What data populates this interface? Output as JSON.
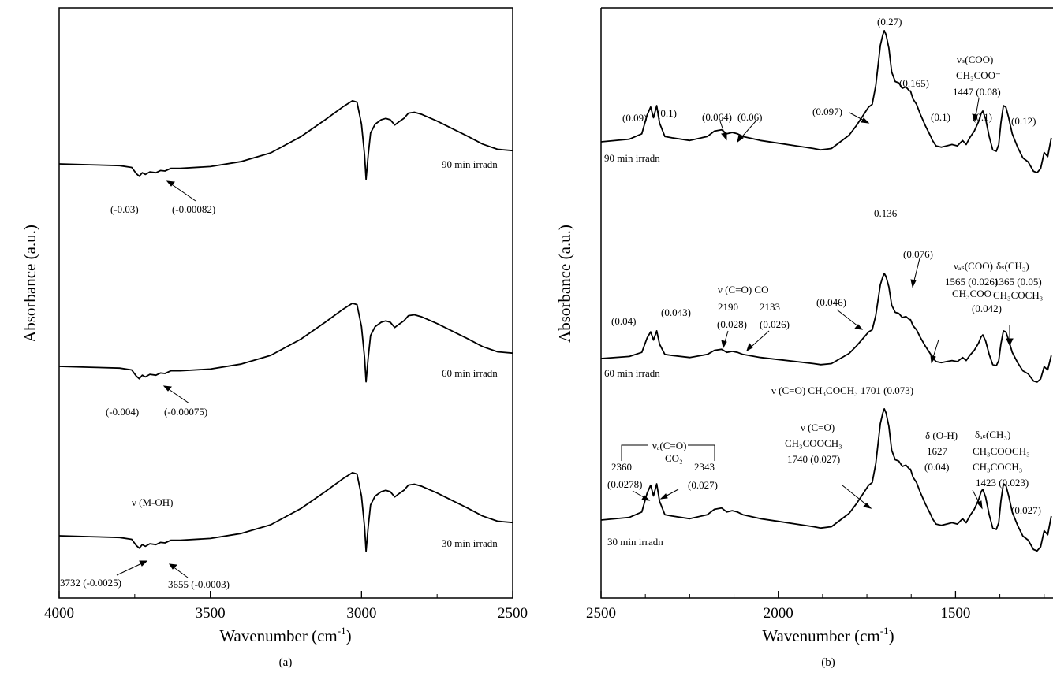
{
  "chart_data": [
    {
      "type": "line",
      "panel_label": "(a)",
      "xlabel": "Wavenumber (cm",
      "xlabel_sup": "-1",
      "xlabel_close": ")",
      "ylabel": "Absorbance (a.u.)",
      "xlim": [
        4000,
        2500
      ],
      "x_ticks": [
        "4000",
        "3500",
        "3000",
        "2500"
      ],
      "y_ticks_shown": false,
      "series": [
        {
          "name": "90 min irradn",
          "x": [
            4000,
            3900,
            3800,
            3760,
            3745,
            3735,
            3725,
            3715,
            3700,
            3680,
            3665,
            3650,
            3630,
            3600,
            3500,
            3400,
            3300,
            3200,
            3120,
            3060,
            3030,
            3015,
            3000,
            2990,
            2985,
            2978,
            2970,
            2955,
            2935,
            2920,
            2905,
            2890,
            2875,
            2860,
            2845,
            2825,
            2800,
            2750,
            2700,
            2650,
            2600,
            2550,
            2500
          ],
          "y": [
            0,
            -0.002,
            -0.004,
            -0.008,
            -0.022,
            -0.028,
            -0.02,
            -0.024,
            -0.018,
            -0.02,
            -0.015,
            -0.016,
            -0.01,
            -0.01,
            -0.006,
            0.005,
            0.025,
            0.062,
            0.1,
            0.13,
            0.143,
            0.14,
            0.09,
            0.02,
            -0.035,
            0.02,
            0.07,
            0.09,
            0.1,
            0.103,
            0.1,
            0.088,
            0.096,
            0.103,
            0.115,
            0.117,
            0.112,
            0.097,
            0.08,
            0.063,
            0.045,
            0.033,
            0.03
          ]
        },
        {
          "name": "60 min irradn",
          "x": [
            4000,
            3900,
            3800,
            3760,
            3745,
            3735,
            3725,
            3715,
            3700,
            3680,
            3665,
            3650,
            3630,
            3600,
            3500,
            3400,
            3300,
            3200,
            3120,
            3060,
            3030,
            3015,
            3000,
            2990,
            2985,
            2978,
            2970,
            2955,
            2935,
            2920,
            2905,
            2890,
            2875,
            2860,
            2845,
            2825,
            2800,
            2750,
            2700,
            2650,
            2600,
            2550,
            2500
          ],
          "y": [
            0,
            -0.002,
            -0.004,
            -0.008,
            -0.022,
            -0.028,
            -0.02,
            -0.024,
            -0.018,
            -0.02,
            -0.015,
            -0.016,
            -0.01,
            -0.01,
            -0.006,
            0.005,
            0.025,
            0.062,
            0.1,
            0.13,
            0.143,
            0.14,
            0.09,
            0.02,
            -0.035,
            0.02,
            0.07,
            0.09,
            0.1,
            0.103,
            0.1,
            0.088,
            0.096,
            0.103,
            0.115,
            0.117,
            0.112,
            0.097,
            0.08,
            0.063,
            0.045,
            0.033,
            0.03
          ]
        },
        {
          "name": "30 min irradn",
          "x": [
            4000,
            3900,
            3800,
            3760,
            3745,
            3735,
            3725,
            3715,
            3700,
            3680,
            3665,
            3650,
            3630,
            3600,
            3500,
            3400,
            3300,
            3200,
            3120,
            3060,
            3030,
            3015,
            3000,
            2990,
            2985,
            2978,
            2970,
            2955,
            2935,
            2920,
            2905,
            2890,
            2875,
            2860,
            2845,
            2825,
            2800,
            2750,
            2700,
            2650,
            2600,
            2550,
            2500
          ],
          "y": [
            0,
            -0.002,
            -0.004,
            -0.008,
            -0.022,
            -0.028,
            -0.02,
            -0.024,
            -0.018,
            -0.02,
            -0.015,
            -0.016,
            -0.01,
            -0.01,
            -0.006,
            0.005,
            0.025,
            0.062,
            0.1,
            0.13,
            0.143,
            0.14,
            0.09,
            0.02,
            -0.035,
            0.02,
            0.07,
            0.09,
            0.1,
            0.103,
            0.1,
            0.088,
            0.096,
            0.103,
            0.115,
            0.117,
            0.112,
            0.097,
            0.08,
            0.063,
            0.045,
            0.033,
            0.03
          ]
        }
      ],
      "annotations": [
        {
          "text": "(-0.03)"
        },
        {
          "text": "(-0.00082)"
        },
        {
          "text": "(-0.004)"
        },
        {
          "text": "(-0.00075)"
        },
        {
          "text": "ν (M-OH)"
        },
        {
          "text": "3732 (-0.0025)"
        },
        {
          "text": "3655 (-0.0003)"
        }
      ]
    },
    {
      "type": "line",
      "panel_label": "(b)",
      "xlabel": "Wavenumber (cm",
      "xlabel_sup": "-1",
      "xlabel_close": ")",
      "ylabel": "Absorbance (a.u.)",
      "xlim": [
        2500,
        1230
      ],
      "x_ticks": [
        "2500",
        "2000",
        "1500"
      ],
      "y_ticks_shown": false,
      "series": [
        {
          "name": "90 min irradn",
          "x": [
            2500,
            2420,
            2385,
            2370,
            2360,
            2352,
            2343,
            2335,
            2320,
            2300,
            2250,
            2200,
            2180,
            2160,
            2145,
            2130,
            2115,
            2100,
            2050,
            2000,
            1950,
            1900,
            1880,
            1850,
            1800,
            1780,
            1760,
            1745,
            1740,
            1735,
            1725,
            1712,
            1705,
            1701,
            1696,
            1688,
            1680,
            1670,
            1660,
            1650,
            1640,
            1630,
            1627,
            1620,
            1610,
            1600,
            1585,
            1570,
            1565,
            1555,
            1540,
            1525,
            1510,
            1495,
            1480,
            1470,
            1460,
            1447,
            1435,
            1428,
            1423,
            1415,
            1405,
            1395,
            1385,
            1378,
            1372,
            1365,
            1358,
            1350,
            1340,
            1325,
            1310,
            1295,
            1280,
            1270,
            1260,
            1250,
            1240,
            1230
          ],
          "y": [
            0,
            0.002,
            0.006,
            0.02,
            0.026,
            0.018,
            0.027,
            0.014,
            0.004,
            0.003,
            0.001,
            0.004,
            0.008,
            0.009,
            0.006,
            0.007,
            0.006,
            0.004,
            0.001,
            -0.001,
            -0.003,
            -0.005,
            -0.006,
            -0.005,
            0.005,
            0.012,
            0.02,
            0.026,
            0.027,
            0.028,
            0.042,
            0.072,
            0.08,
            0.083,
            0.08,
            0.07,
            0.052,
            0.045,
            0.044,
            0.04,
            0.041,
            0.038,
            0.038,
            0.032,
            0.028,
            0.021,
            0.012,
            0.004,
            0.001,
            -0.003,
            -0.004,
            -0.003,
            -0.002,
            -0.003,
            0.001,
            -0.002,
            0.003,
            0.008,
            0.015,
            0.021,
            0.023,
            0.017,
            0.004,
            -0.006,
            -0.007,
            -0.002,
            0.014,
            0.027,
            0.026,
            0.018,
            0.006,
            -0.004,
            -0.012,
            -0.015,
            -0.022,
            -0.023,
            -0.02,
            -0.008,
            -0.011,
            0.003
          ]
        },
        {
          "name": "60 min irradn",
          "x": [
            2500,
            2420,
            2385,
            2370,
            2360,
            2352,
            2343,
            2335,
            2320,
            2300,
            2250,
            2200,
            2180,
            2160,
            2145,
            2130,
            2115,
            2100,
            2050,
            2000,
            1950,
            1900,
            1880,
            1850,
            1800,
            1780,
            1760,
            1745,
            1740,
            1735,
            1725,
            1712,
            1705,
            1701,
            1696,
            1688,
            1680,
            1670,
            1660,
            1650,
            1640,
            1630,
            1627,
            1620,
            1610,
            1600,
            1585,
            1570,
            1565,
            1555,
            1540,
            1525,
            1510,
            1495,
            1480,
            1470,
            1460,
            1447,
            1435,
            1428,
            1423,
            1415,
            1405,
            1395,
            1385,
            1378,
            1372,
            1365,
            1358,
            1350,
            1340,
            1325,
            1310,
            1295,
            1280,
            1270,
            1260,
            1250,
            1240,
            1230
          ],
          "y": [
            0,
            0.002,
            0.006,
            0.02,
            0.026,
            0.018,
            0.027,
            0.014,
            0.004,
            0.003,
            0.001,
            0.004,
            0.008,
            0.009,
            0.006,
            0.007,
            0.006,
            0.004,
            0.001,
            -0.001,
            -0.003,
            -0.005,
            -0.006,
            -0.005,
            0.005,
            0.012,
            0.02,
            0.026,
            0.027,
            0.028,
            0.042,
            0.072,
            0.08,
            0.083,
            0.08,
            0.07,
            0.052,
            0.045,
            0.044,
            0.04,
            0.041,
            0.038,
            0.038,
            0.032,
            0.028,
            0.021,
            0.012,
            0.004,
            0.001,
            -0.003,
            -0.004,
            -0.003,
            -0.002,
            -0.003,
            0.001,
            -0.002,
            0.003,
            0.008,
            0.015,
            0.021,
            0.023,
            0.017,
            0.004,
            -0.006,
            -0.007,
            -0.002,
            0.014,
            0.027,
            0.026,
            0.018,
            0.006,
            -0.004,
            -0.012,
            -0.015,
            -0.022,
            -0.023,
            -0.02,
            -0.008,
            -0.011,
            0.003
          ]
        },
        {
          "name": "30 min irradn",
          "x": [
            2500,
            2420,
            2385,
            2370,
            2360,
            2352,
            2343,
            2335,
            2320,
            2300,
            2250,
            2200,
            2180,
            2160,
            2145,
            2130,
            2115,
            2100,
            2050,
            2000,
            1950,
            1900,
            1880,
            1850,
            1800,
            1780,
            1760,
            1745,
            1740,
            1735,
            1725,
            1712,
            1705,
            1701,
            1696,
            1688,
            1680,
            1670,
            1660,
            1650,
            1640,
            1630,
            1627,
            1620,
            1610,
            1600,
            1585,
            1570,
            1565,
            1555,
            1540,
            1525,
            1510,
            1495,
            1480,
            1470,
            1460,
            1447,
            1435,
            1428,
            1423,
            1415,
            1405,
            1395,
            1385,
            1378,
            1372,
            1365,
            1358,
            1350,
            1340,
            1325,
            1310,
            1295,
            1280,
            1270,
            1260,
            1250,
            1240,
            1230
          ],
          "y": [
            0,
            0.002,
            0.006,
            0.02,
            0.026,
            0.018,
            0.027,
            0.014,
            0.004,
            0.003,
            0.001,
            0.004,
            0.008,
            0.009,
            0.006,
            0.007,
            0.006,
            0.004,
            0.001,
            -0.001,
            -0.003,
            -0.005,
            -0.006,
            -0.005,
            0.005,
            0.012,
            0.02,
            0.026,
            0.027,
            0.028,
            0.042,
            0.072,
            0.08,
            0.083,
            0.08,
            0.07,
            0.052,
            0.045,
            0.044,
            0.04,
            0.041,
            0.038,
            0.038,
            0.032,
            0.028,
            0.021,
            0.012,
            0.004,
            0.001,
            -0.003,
            -0.004,
            -0.003,
            -0.002,
            -0.003,
            0.001,
            -0.002,
            0.003,
            0.008,
            0.015,
            0.021,
            0.023,
            0.017,
            0.004,
            -0.006,
            -0.007,
            -0.002,
            0.014,
            0.027,
            0.026,
            0.018,
            0.006,
            -0.004,
            -0.012,
            -0.015,
            -0.022,
            -0.023,
            -0.02,
            -0.008,
            -0.011,
            0.003
          ]
        }
      ],
      "annotations": [
        {
          "text": "(0.27)"
        },
        {
          "text": "(0.165)"
        },
        {
          "text": "(0.097)"
        },
        {
          "text": "(0.09)"
        },
        {
          "text": "(0.1)"
        },
        {
          "text": "(0.064)"
        },
        {
          "text": "(0.06)"
        },
        {
          "text": "(0.1)"
        },
        {
          "text": "(0.1)"
        },
        {
          "text": "(0.12)"
        },
        {
          "text": "1447 (0.08)"
        },
        {
          "text": "0.136"
        },
        {
          "text": "(0.076)"
        },
        {
          "text": "(0.04)"
        },
        {
          "text": "(0.043)"
        },
        {
          "text": "2190"
        },
        {
          "text": "(0.028)"
        },
        {
          "text": "2133"
        },
        {
          "text": "(0.026)"
        },
        {
          "text": "(0.046)"
        },
        {
          "text": "1565 (0.026)"
        },
        {
          "text": "(0.042)"
        },
        {
          "text": "1365 (0.05)"
        },
        {
          "text": "2360"
        },
        {
          "text": "(0.0278)"
        },
        {
          "text": "2343"
        },
        {
          "text": "(0.027)"
        },
        {
          "text": "1740 (0.027)"
        },
        {
          "text": "δ (O-H)"
        },
        {
          "text": "1627"
        },
        {
          "text": "(0.04)"
        },
        {
          "text": "1423 (0.023)"
        },
        {
          "text": "(0.027)"
        },
        {
          "text": "ν (C=O) CO"
        },
        {
          "text": "ν (C=O)"
        },
        {
          "text": "ν (C=O) CH₃COCH₃ 1701 (0.073)"
        },
        {
          "text": "νₐ(C=O)"
        },
        {
          "text": "CO₂"
        },
        {
          "text": "CH₃COOCH₃"
        },
        {
          "text": "CH₃COO⁻"
        },
        {
          "text": "CH₃COCH₃"
        },
        {
          "text": "νₛ(COO)"
        },
        {
          "text": "νₐₛ(COO)"
        },
        {
          "text": "δₛ(CH₃)"
        },
        {
          "text": "δₐₛ(CH₃)"
        }
      ]
    }
  ]
}
